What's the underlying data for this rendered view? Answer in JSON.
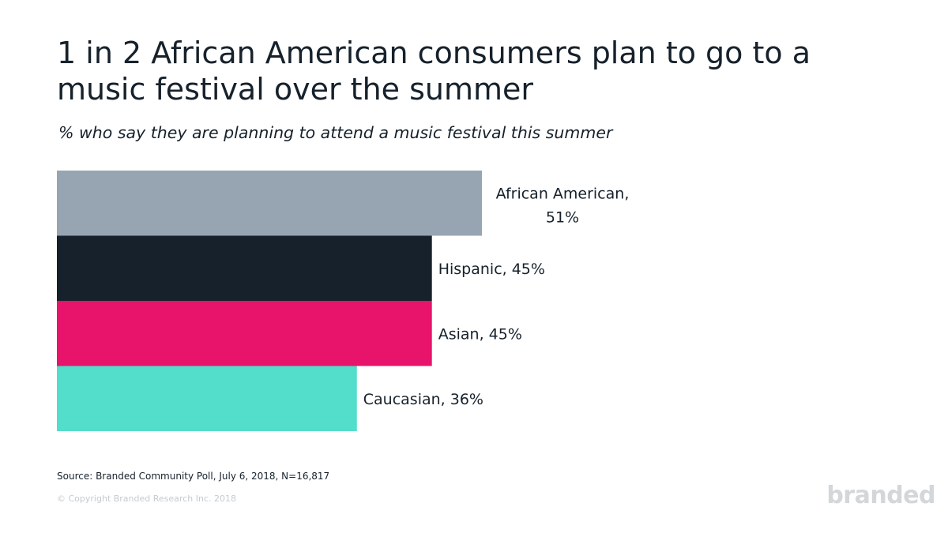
{
  "header": {
    "title": "1 in 2 African American consumers plan to go to a music festival over the summer",
    "subtitle": "% who say they are planning to attend a music festival this summer"
  },
  "chart_data": {
    "type": "bar",
    "orientation": "horizontal",
    "categories": [
      "African American",
      "Hispanic",
      "Asian",
      "Caucasian"
    ],
    "values": [
      51,
      45,
      45,
      36
    ],
    "unit": "%",
    "data_labels": [
      "African American,\n51%",
      "Hispanic, 45%",
      "Asian, 45%",
      "Caucasian, 36%"
    ],
    "colors": [
      "#96a5b1",
      "#16212b",
      "#e8136a",
      "#53ddcb"
    ],
    "title": "1 in 2 African American consumers plan to go to a music festival over the summer",
    "subtitle": "% who say they are planning to attend a music festival this summer",
    "xlabel": "",
    "ylabel": "",
    "grid": false,
    "legend": "none"
  },
  "footer": {
    "source": "Source: Branded Community Poll, July 6, 2018, N=16,817",
    "copyright": "© Copyright Branded Research Inc. 2018",
    "logo_text": "branded"
  }
}
